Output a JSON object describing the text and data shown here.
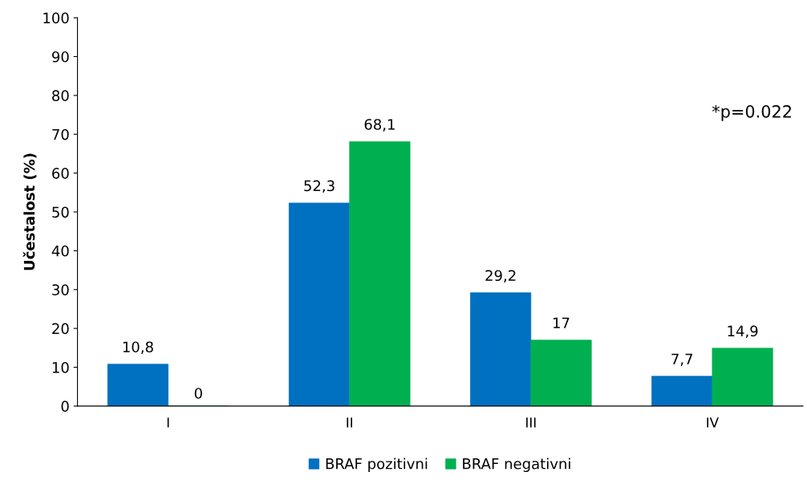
{
  "chart_data": {
    "type": "bar",
    "ylabel": "Učestalost (%)",
    "categories": [
      "I",
      "II",
      "III",
      "IV"
    ],
    "series": [
      {
        "name": "BRAF pozitivni",
        "color": "#0070c0",
        "values": [
          10.8,
          52.3,
          29.2,
          7.7
        ],
        "value_labels": [
          "10,8",
          "52,3",
          "29,2",
          "7,7"
        ]
      },
      {
        "name": "BRAF negativni",
        "color": "#00b050",
        "values": [
          0,
          68.1,
          17,
          14.9
        ],
        "value_labels": [
          "0",
          "68,1",
          "17",
          "14,9"
        ]
      }
    ],
    "ylim": [
      0,
      100
    ],
    "yticks": [
      0,
      10,
      20,
      30,
      40,
      50,
      60,
      70,
      80,
      90,
      100
    ],
    "annotations": [
      "*p=0.022"
    ],
    "grid": false,
    "legend": "bottom"
  }
}
